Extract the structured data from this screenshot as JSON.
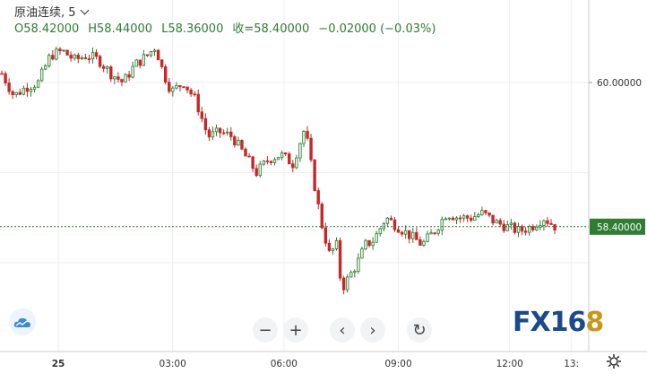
{
  "legend": {
    "title": "原油连续, 5",
    "open": "O58.42000",
    "high": "H58.44000",
    "low": "L58.36000",
    "close": "收=58.40000",
    "change": "−0.02000 (−0.03%)"
  },
  "toolbar": {
    "zoom_out": "−",
    "zoom_in": "+",
    "scroll_left": "‹",
    "scroll_right": "›",
    "reset": "↻"
  },
  "brand": {
    "text": "FX16",
    "accent": "8"
  },
  "colors": {
    "up": "#2e7d32",
    "down": "#c62828",
    "price_line": "#2e7d32",
    "grid": "#eeeeee"
  },
  "chart_data": {
    "type": "candlestick",
    "title": "原油连续, 5",
    "y_ticks": [
      60.0
    ],
    "y_tick_labels": [
      "60.00000"
    ],
    "last_price": 58.4,
    "last_price_label": "58.40000",
    "x_tick_labels": [
      "25",
      "03:00",
      "06:00",
      "09:00",
      "12:00",
      "13:"
    ],
    "x_tick_positions": [
      0.0,
      37.0,
      73.0,
      110.0,
      146.0,
      166.0
    ],
    "ylim": [
      57.2,
      60.75
    ],
    "close_path": [
      [
        0,
        60.1
      ],
      [
        3,
        59.85
      ],
      [
        6,
        59.95
      ],
      [
        9,
        60.0
      ],
      [
        12,
        60.3
      ],
      [
        15,
        60.35
      ],
      [
        18,
        60.25
      ],
      [
        21,
        60.3
      ],
      [
        24,
        60.25
      ],
      [
        27,
        60.1
      ],
      [
        30,
        60.0
      ],
      [
        33,
        60.2
      ],
      [
        36,
        60.3
      ],
      [
        38,
        60.4
      ],
      [
        40,
        60.1
      ],
      [
        42,
        59.9
      ],
      [
        45,
        60.0
      ],
      [
        48,
        59.8
      ],
      [
        51,
        59.4
      ],
      [
        54,
        59.45
      ],
      [
        57,
        59.4
      ],
      [
        60,
        59.2
      ],
      [
        63,
        59.0
      ],
      [
        66,
        59.15
      ],
      [
        69,
        59.2
      ],
      [
        72,
        59.1
      ],
      [
        75,
        59.5
      ],
      [
        77,
        58.95
      ],
      [
        79,
        58.45
      ],
      [
        81,
        58.1
      ],
      [
        83,
        58.2
      ],
      [
        84,
        57.7
      ],
      [
        86,
        57.85
      ],
      [
        88,
        58.0
      ],
      [
        90,
        58.2
      ],
      [
        92,
        58.25
      ],
      [
        95,
        58.5
      ],
      [
        98,
        58.4
      ],
      [
        101,
        58.3
      ],
      [
        104,
        58.2
      ],
      [
        107,
        58.35
      ],
      [
        110,
        58.55
      ],
      [
        113,
        58.5
      ],
      [
        116,
        58.5
      ],
      [
        119,
        58.55
      ],
      [
        122,
        58.45
      ],
      [
        125,
        58.4
      ],
      [
        128,
        58.35
      ],
      [
        131,
        58.4
      ],
      [
        134,
        58.5
      ],
      [
        137,
        58.4
      ]
    ]
  }
}
